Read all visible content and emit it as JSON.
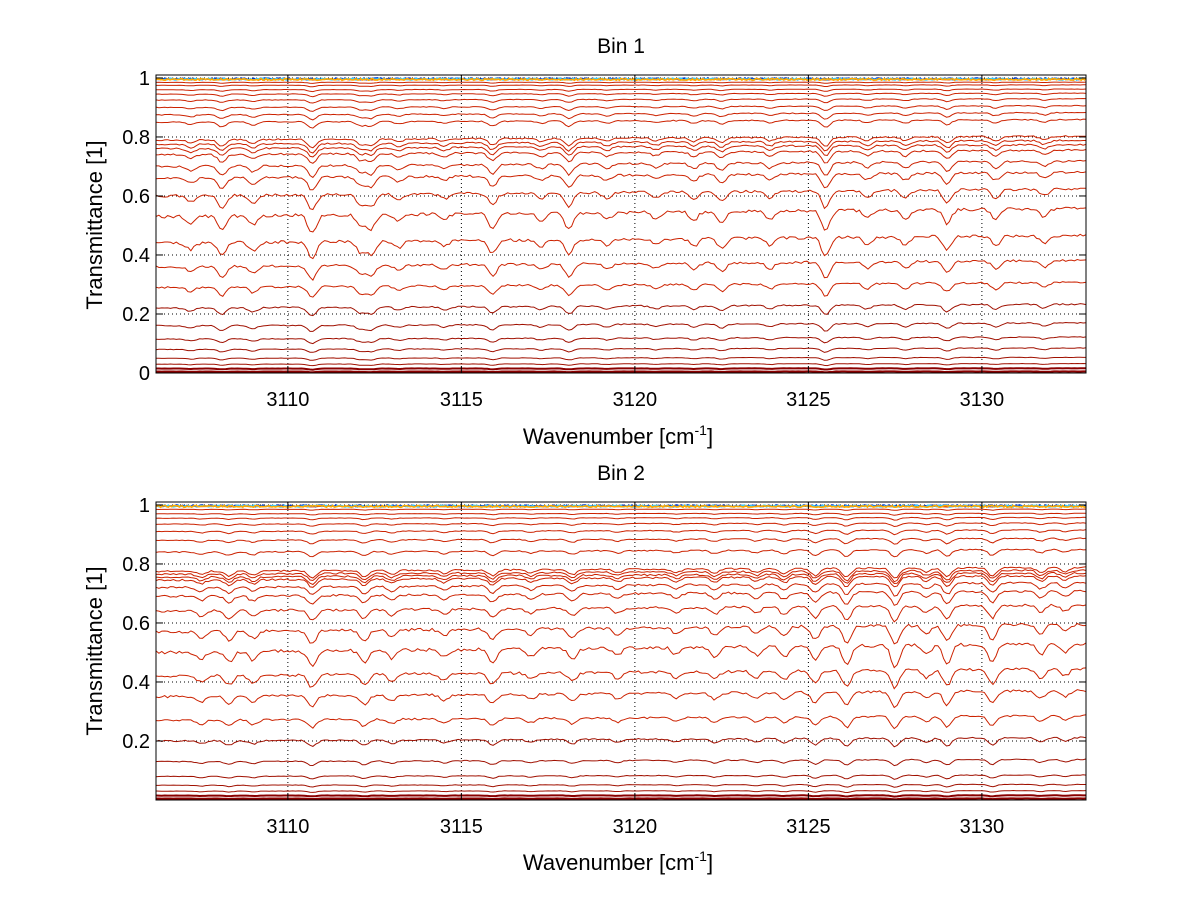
{
  "figure": {
    "background": "#ffffff"
  },
  "chart_data": [
    {
      "type": "line",
      "title": "Bin 1",
      "xlabel_main": "Wavenumber [cm",
      "xlabel_sup": "-1",
      "xlabel_close": "]",
      "ylabel": "Transmittance [1]",
      "xlim": [
        3106.2,
        3133.0
      ],
      "ylim": [
        0,
        1.01
      ],
      "xticks": [
        3110,
        3115,
        3120,
        3125,
        3130
      ],
      "xtick_labels": [
        "3110",
        "3115",
        "3120",
        "3125",
        "3130"
      ],
      "yticks": [
        0,
        0.2,
        0.4,
        0.6,
        0.8,
        1
      ],
      "ytick_labels": [
        "0",
        "0.2",
        "0.4",
        "0.6",
        "0.8",
        "1"
      ],
      "grid": true,
      "line_color": "#cc2200",
      "dark_line_color": "#8b0000",
      "top_noise_colors": [
        "#0033cc",
        "#33ccff",
        "#ffaa00"
      ],
      "series_levels": [
        0.995,
        0.985,
        0.975,
        0.96,
        0.945,
        0.925,
        0.9,
        0.875,
        0.85,
        0.79,
        0.775,
        0.76,
        0.74,
        0.7,
        0.66,
        0.6,
        0.53,
        0.44,
        0.36,
        0.29,
        0.22,
        0.16,
        0.115,
        0.08,
        0.05,
        0.03,
        0.015,
        0.005
      ],
      "absorption_lines": [
        {
          "x": 3107.2,
          "depth": 0.35
        },
        {
          "x": 3108.1,
          "depth": 0.7
        },
        {
          "x": 3109.0,
          "depth": 0.45
        },
        {
          "x": 3110.7,
          "depth": 0.9
        },
        {
          "x": 3112.1,
          "depth": 0.6
        },
        {
          "x": 3112.4,
          "depth": 0.7
        },
        {
          "x": 3113.2,
          "depth": 0.35
        },
        {
          "x": 3114.5,
          "depth": 0.3
        },
        {
          "x": 3115.9,
          "depth": 0.7
        },
        {
          "x": 3117.3,
          "depth": 0.35
        },
        {
          "x": 3118.1,
          "depth": 0.8
        },
        {
          "x": 3119.2,
          "depth": 0.35
        },
        {
          "x": 3120.6,
          "depth": 0.3
        },
        {
          "x": 3121.7,
          "depth": 0.4
        },
        {
          "x": 3122.5,
          "depth": 0.55
        },
        {
          "x": 3123.9,
          "depth": 0.4
        },
        {
          "x": 3125.5,
          "depth": 1.0
        },
        {
          "x": 3126.7,
          "depth": 0.4
        },
        {
          "x": 3127.8,
          "depth": 0.45
        },
        {
          "x": 3129.0,
          "depth": 0.7
        },
        {
          "x": 3130.4,
          "depth": 0.5
        },
        {
          "x": 3131.8,
          "depth": 0.4
        }
      ]
    },
    {
      "type": "line",
      "title": "Bin 2",
      "xlabel_main": "Wavenumber [cm",
      "xlabel_sup": "-1",
      "xlabel_close": "]",
      "ylabel": "Transmittance [1]",
      "xlim": [
        3106.2,
        3133.0
      ],
      "ylim": [
        0.0,
        1.01
      ],
      "xticks": [
        3110,
        3115,
        3120,
        3125,
        3130
      ],
      "xtick_labels": [
        "3110",
        "3115",
        "3120",
        "3125",
        "3130"
      ],
      "yticks": [
        0.2,
        0.4,
        0.6,
        0.8,
        1
      ],
      "ytick_labels": [
        "0.2",
        "0.4",
        "0.6",
        "0.8",
        "1"
      ],
      "grid": true,
      "line_color": "#cc2200",
      "dark_line_color": "#8b0000",
      "top_noise_colors": [
        "#0033cc",
        "#33ccff",
        "#ffaa00"
      ],
      "series_levels": [
        0.995,
        0.985,
        0.97,
        0.955,
        0.935,
        0.91,
        0.88,
        0.84,
        0.775,
        0.765,
        0.755,
        0.745,
        0.72,
        0.69,
        0.64,
        0.57,
        0.5,
        0.42,
        0.35,
        0.27,
        0.2,
        0.13,
        0.08,
        0.05,
        0.03,
        0.015,
        0.005
      ],
      "absorption_lines": [
        {
          "x": 3107.5,
          "depth": 0.35
        },
        {
          "x": 3108.3,
          "depth": 0.5
        },
        {
          "x": 3109.0,
          "depth": 0.4
        },
        {
          "x": 3110.7,
          "depth": 0.7
        },
        {
          "x": 3112.2,
          "depth": 0.6
        },
        {
          "x": 3113.0,
          "depth": 0.4
        },
        {
          "x": 3114.5,
          "depth": 0.35
        },
        {
          "x": 3115.9,
          "depth": 0.6
        },
        {
          "x": 3117.0,
          "depth": 0.35
        },
        {
          "x": 3118.2,
          "depth": 0.5
        },
        {
          "x": 3119.5,
          "depth": 0.35
        },
        {
          "x": 3121.2,
          "depth": 0.35
        },
        {
          "x": 3122.3,
          "depth": 0.45
        },
        {
          "x": 3123.5,
          "depth": 0.4
        },
        {
          "x": 3124.3,
          "depth": 0.5
        },
        {
          "x": 3125.2,
          "depth": 0.7
        },
        {
          "x": 3126.1,
          "depth": 0.9
        },
        {
          "x": 3127.5,
          "depth": 1.0
        },
        {
          "x": 3128.4,
          "depth": 0.45
        },
        {
          "x": 3129.0,
          "depth": 0.9
        },
        {
          "x": 3130.3,
          "depth": 0.8
        },
        {
          "x": 3131.7,
          "depth": 0.5
        },
        {
          "x": 3132.4,
          "depth": 0.4
        }
      ]
    }
  ]
}
